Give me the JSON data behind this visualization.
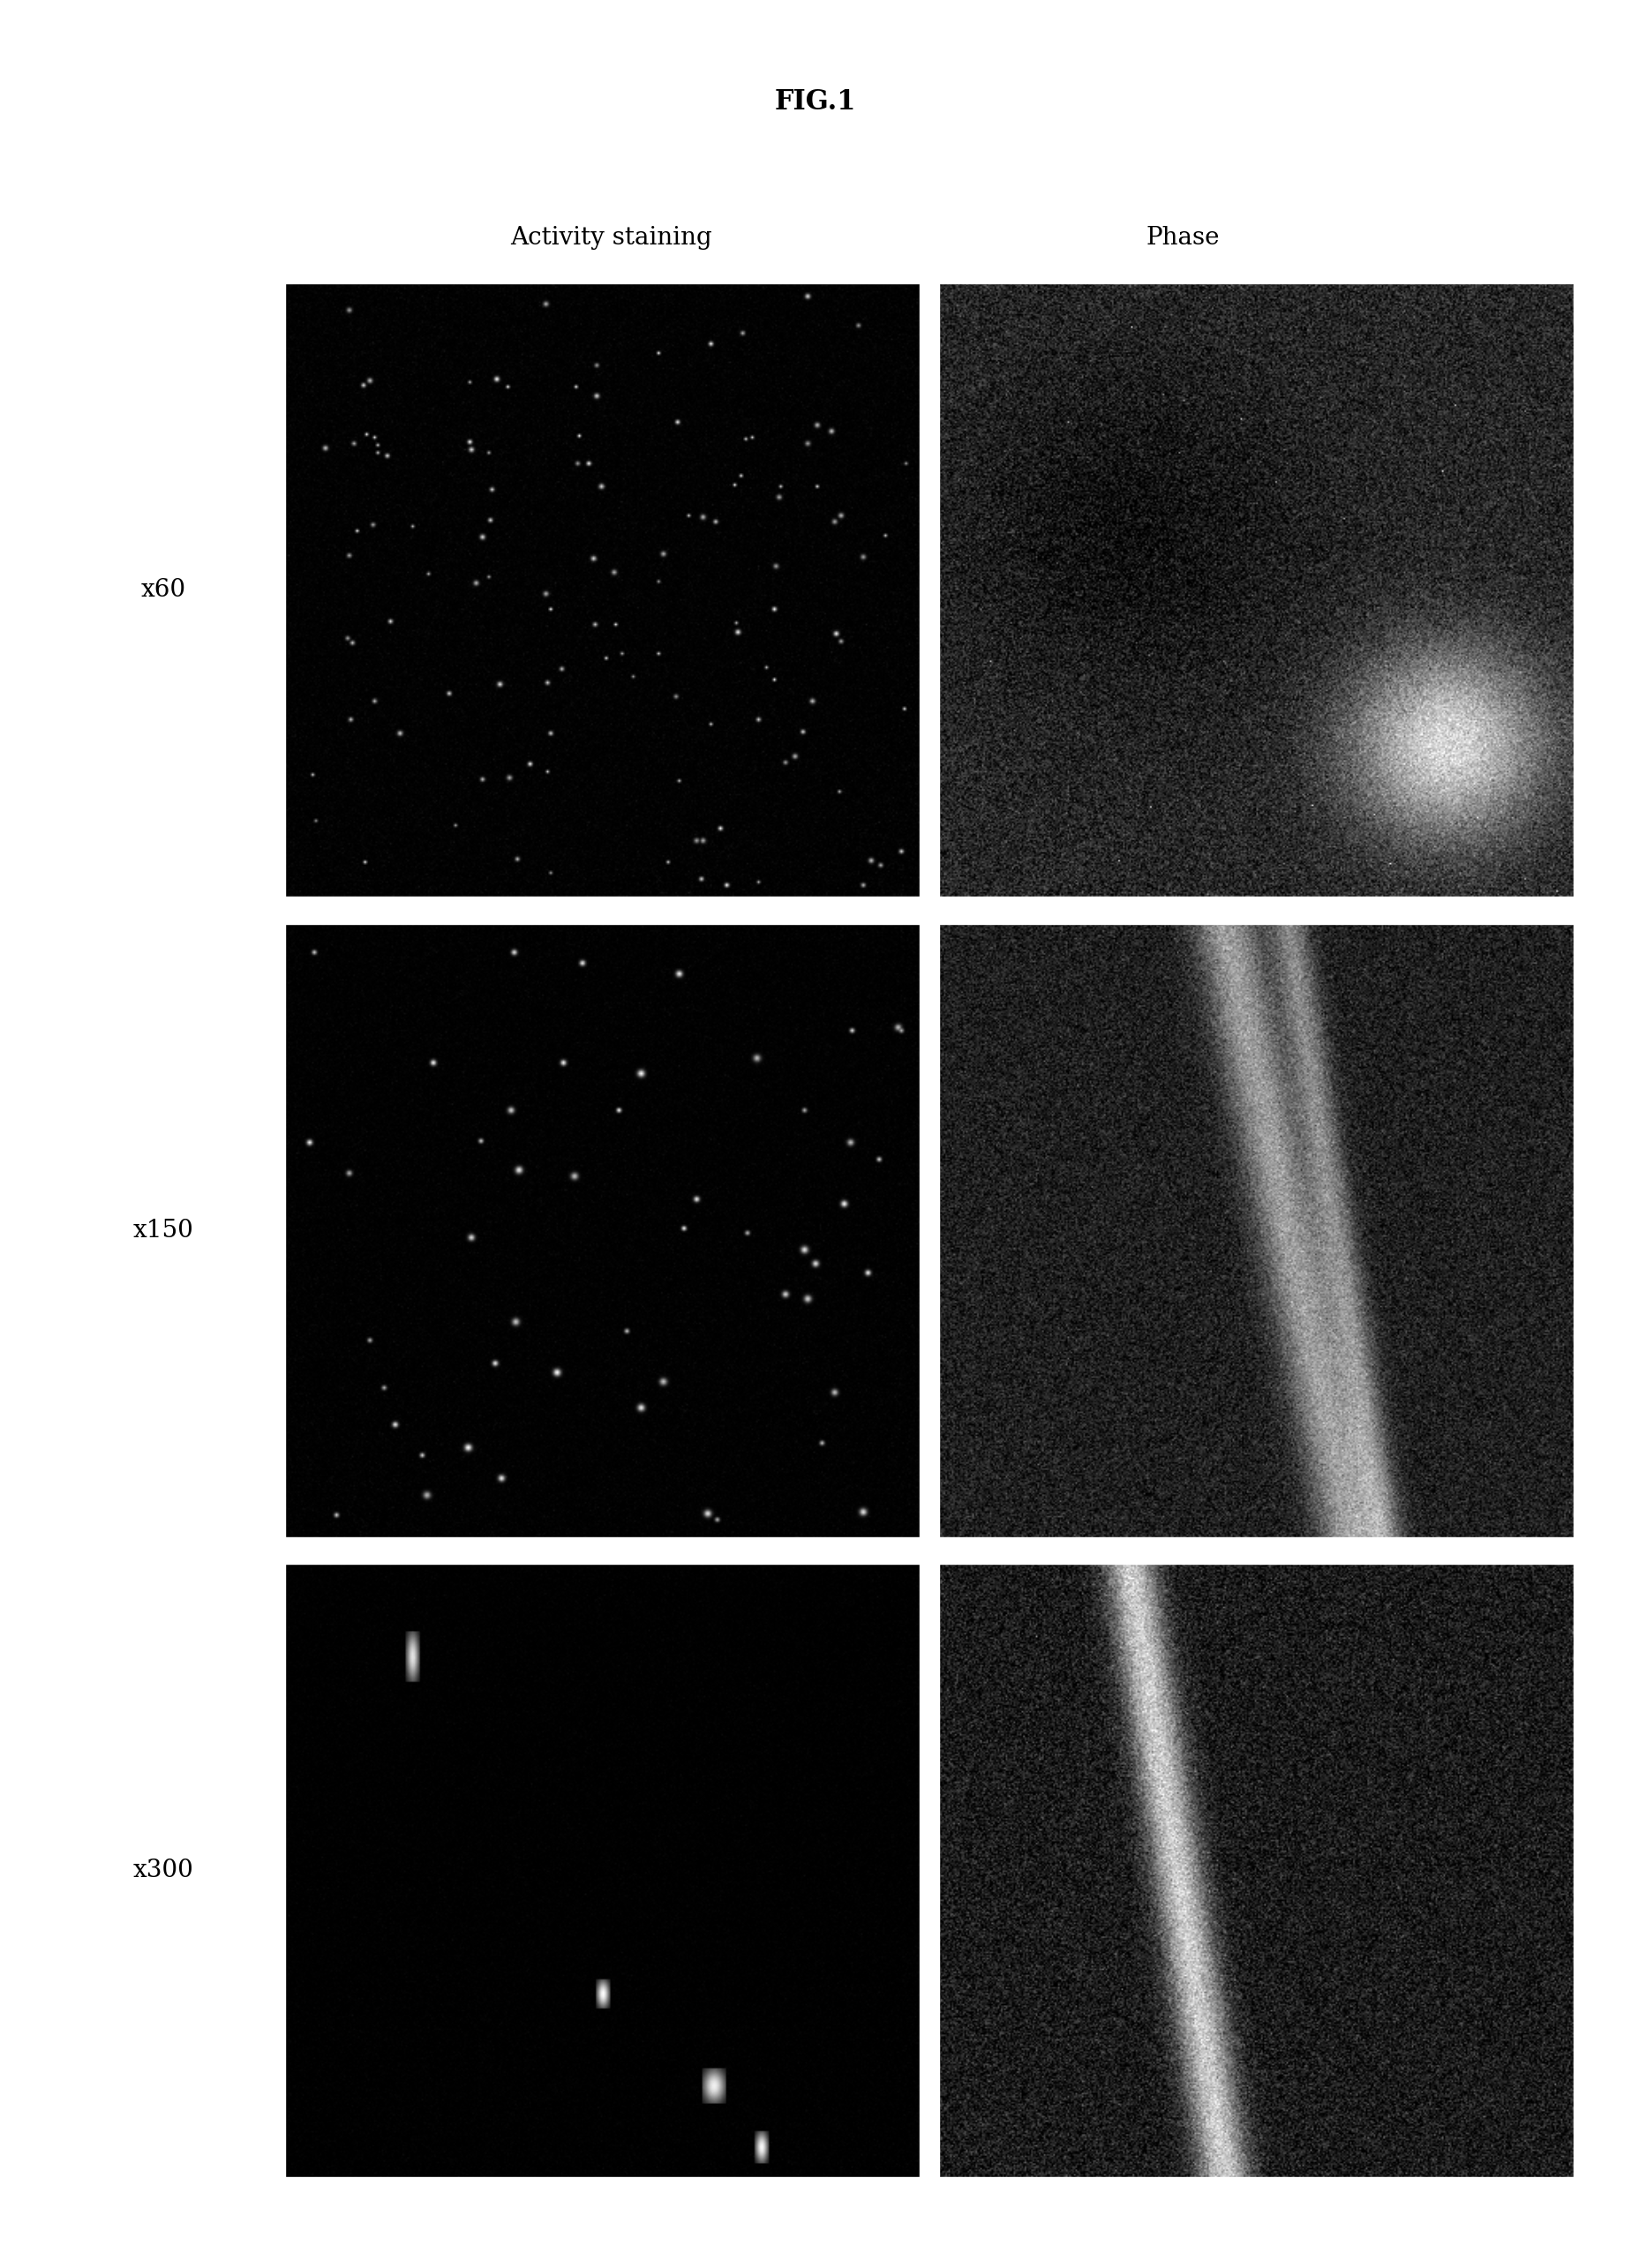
{
  "title": "FIG.1",
  "col_labels": [
    "Activity staining",
    "Phase"
  ],
  "row_labels": [
    "x60",
    "x150",
    "x300"
  ],
  "background_color": "#ffffff",
  "title_fontsize": 22,
  "col_label_fontsize": 20,
  "row_label_fontsize": 20,
  "fig_width": 18.48,
  "fig_height": 25.7
}
